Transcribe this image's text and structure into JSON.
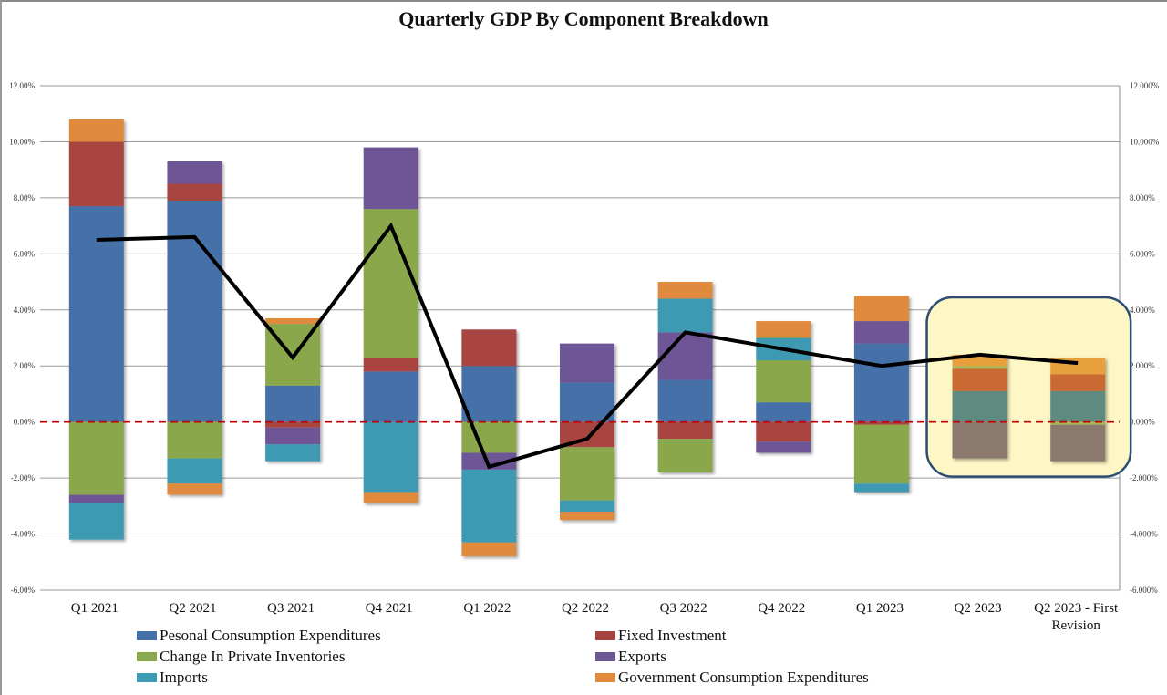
{
  "chart_data": {
    "type": "bar",
    "subtype": "stacked-bar-with-line",
    "title": "Quarterly GDP By Component Breakdown",
    "xlabel": "",
    "ylabel": "",
    "ylim": [
      -6,
      12
    ],
    "y_ticks_left": [
      "12.00%",
      "10.00%",
      "8.00%",
      "6.00%",
      "4.00%",
      "2.00%",
      "0.00%",
      "-2.00%",
      "-4.00%",
      "-6.00%"
    ],
    "y_ticks_right": [
      "12.000%",
      "10.000%",
      "8.000%",
      "6.000%",
      "4.000%",
      "2.000%",
      "0.000%",
      "-2.000%",
      "-4.000%",
      "-6.000%"
    ],
    "grid": true,
    "zero_line": "dashed red",
    "legend_position": "bottom",
    "categories": [
      "Q1 2021",
      "Q2 2021",
      "Q3 2021",
      "Q4 2021",
      "Q1 2022",
      "Q2 2022",
      "Q3 2022",
      "Q4 2022",
      "Q1 2023",
      "Q2 2023",
      "Q2 2023 - First Revision"
    ],
    "category_labels": [
      [
        "Q1 2021"
      ],
      [
        "Q2 2021"
      ],
      [
        "Q3 2021"
      ],
      [
        "Q4 2021"
      ],
      [
        "Q1 2022"
      ],
      [
        "Q2 2022"
      ],
      [
        "Q3 2022"
      ],
      [
        "Q4 2022"
      ],
      [
        "Q1 2023"
      ],
      [
        "Q2 2023"
      ],
      [
        "Q2 2023 - First",
        "Revision"
      ]
    ],
    "series": [
      {
        "name": "Pesonal Consumption Expenditures",
        "key": "pce",
        "color": "#4470a8",
        "values": [
          7.7,
          7.9,
          1.3,
          1.8,
          2.0,
          1.4,
          1.5,
          0.7,
          2.8,
          1.1,
          1.1
        ]
      },
      {
        "name": "Fixed Investment",
        "key": "fi",
        "color": "#a84440",
        "values": [
          2.3,
          0.6,
          -0.2,
          0.5,
          1.3,
          -0.9,
          -0.6,
          -0.7,
          -0.1,
          0.8,
          0.6
        ]
      },
      {
        "name": "Change In Private Inventories",
        "key": "inv",
        "color": "#8aa84c",
        "values": [
          -2.6,
          -1.3,
          2.2,
          5.3,
          -1.1,
          -1.9,
          -1.2,
          1.5,
          -2.1,
          0.1,
          -0.1
        ]
      },
      {
        "name": "Exports",
        "key": "exp",
        "color": "#6e5596",
        "values": [
          -0.3,
          0.8,
          -0.6,
          2.2,
          -0.6,
          1.4,
          1.7,
          -0.4,
          0.8,
          0.0,
          0.0
        ]
      },
      {
        "name": "Imports",
        "key": "imp",
        "color": "#3c9ab2",
        "values": [
          -1.3,
          -0.9,
          -0.6,
          -2.5,
          -2.6,
          -0.4,
          1.2,
          0.8,
          -0.3,
          -1.3,
          -1.3
        ]
      },
      {
        "name": "Government Consumption Expenditures",
        "key": "gov",
        "color": "#e08a3c",
        "values": [
          0.8,
          -0.4,
          0.2,
          -0.4,
          -0.5,
          -0.3,
          0.6,
          0.6,
          0.9,
          0.4,
          0.6
        ]
      }
    ],
    "highlight_imports_override": [
      null,
      null,
      null,
      null,
      null,
      null,
      null,
      null,
      null,
      1.2,
      1.1
    ],
    "line": {
      "name": "GDP",
      "color": "#000000",
      "values": [
        6.5,
        6.6,
        2.3,
        7.0,
        -1.6,
        -0.6,
        3.2,
        2.6,
        2.0,
        2.4,
        2.1
      ]
    },
    "highlight": {
      "categories": [
        "Q2 2023",
        "Q2 2023 - First Revision"
      ],
      "fill": "#fdf7c6",
      "border": "#2e4d72"
    }
  }
}
